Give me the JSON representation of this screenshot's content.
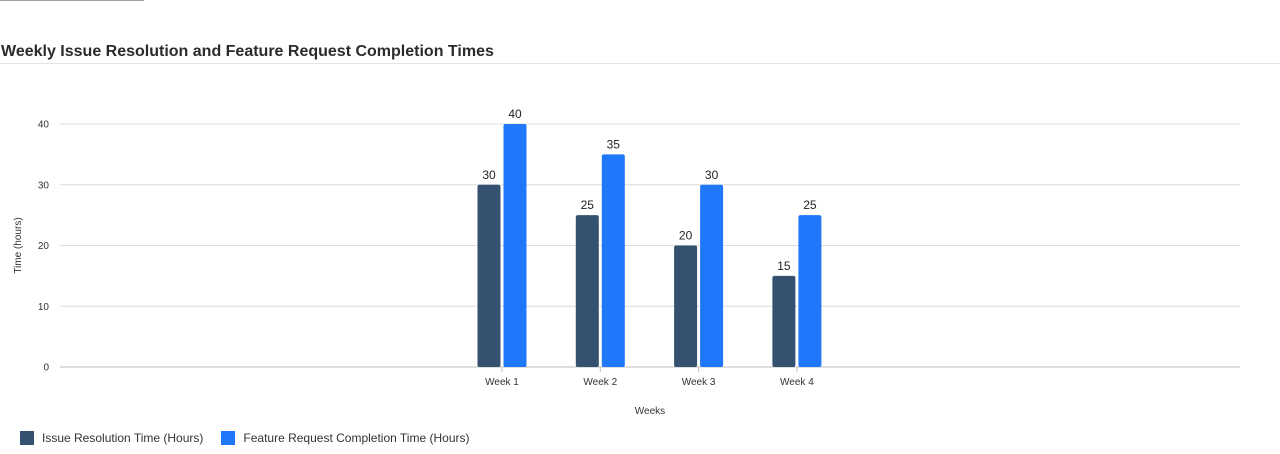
{
  "chart_data": {
    "type": "bar",
    "title": "Weekly Issue Resolution and Feature Request Completion Times",
    "xlabel": "Weeks",
    "ylabel": "Time (hours)",
    "ylim": [
      0,
      40
    ],
    "yticks": [
      0,
      10,
      20,
      30,
      40
    ],
    "grid": true,
    "legend_position": "bottom-left",
    "categories": [
      "Week 1",
      "Week 2",
      "Week 3",
      "Week 4"
    ],
    "series": [
      {
        "name": "Issue Resolution Time (Hours)",
        "values": [
          30,
          25,
          20,
          15
        ],
        "color": "#34526f"
      },
      {
        "name": "Feature Request Completion Time (Hours)",
        "values": [
          40,
          35,
          30,
          25
        ],
        "color": "#1f77fa"
      }
    ]
  }
}
